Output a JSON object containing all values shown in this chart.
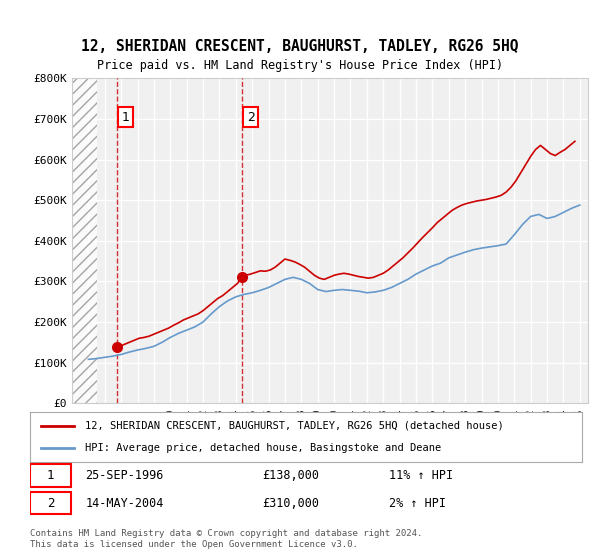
{
  "title": "12, SHERIDAN CRESCENT, BAUGHURST, TADLEY, RG26 5HQ",
  "subtitle": "Price paid vs. HM Land Registry's House Price Index (HPI)",
  "ylabel": "",
  "ylim": [
    0,
    800000
  ],
  "yticks": [
    0,
    100000,
    200000,
    300000,
    400000,
    500000,
    600000,
    700000,
    800000
  ],
  "ytick_labels": [
    "£0",
    "£100K",
    "£200K",
    "£300K",
    "£400K",
    "£500K",
    "£600K",
    "£700K",
    "£800K"
  ],
  "xlim_start": 1994.0,
  "xlim_end": 2025.5,
  "transactions": [
    {
      "num": 1,
      "date": "25-SEP-1996",
      "x": 1996.73,
      "price": 138000,
      "pct": "11%",
      "direction": "↑"
    },
    {
      "num": 2,
      "date": "14-MAY-2004",
      "x": 2004.37,
      "price": 310000,
      "pct": "2%",
      "direction": "↑"
    }
  ],
  "hatch_end_x": 1995.5,
  "line_color_price": "#cc0000",
  "line_color_hpi": "#6699cc",
  "background_color": "#ffffff",
  "plot_bg_color": "#f0f0f0",
  "grid_color": "#ffffff",
  "legend_label_price": "12, SHERIDAN CRESCENT, BAUGHURST, TADLEY, RG26 5HQ (detached house)",
  "legend_label_hpi": "HPI: Average price, detached house, Basingstoke and Deane",
  "footer": "Contains HM Land Registry data © Crown copyright and database right 2024.\nThis data is licensed under the Open Government Licence v3.0.",
  "hpi_data": {
    "years": [
      1995,
      1995.5,
      1996,
      1996.5,
      1997,
      1997.5,
      1998,
      1998.5,
      1999,
      1999.5,
      2000,
      2000.5,
      2001,
      2001.5,
      2002,
      2002.5,
      2003,
      2003.5,
      2004,
      2004.5,
      2005,
      2005.5,
      2006,
      2006.5,
      2007,
      2007.5,
      2008,
      2008.5,
      2009,
      2009.5,
      2010,
      2010.5,
      2011,
      2011.5,
      2012,
      2012.5,
      2013,
      2013.5,
      2014,
      2014.5,
      2015,
      2015.5,
      2016,
      2016.5,
      2017,
      2017.5,
      2018,
      2018.5,
      2019,
      2019.5,
      2020,
      2020.5,
      2021,
      2021.5,
      2022,
      2022.5,
      2023,
      2023.5,
      2024,
      2024.5,
      2025
    ],
    "values": [
      108000,
      110000,
      113000,
      116000,
      120000,
      126000,
      131000,
      135000,
      140000,
      150000,
      162000,
      172000,
      180000,
      188000,
      200000,
      220000,
      238000,
      252000,
      262000,
      268000,
      272000,
      278000,
      285000,
      295000,
      305000,
      310000,
      305000,
      295000,
      280000,
      275000,
      278000,
      280000,
      278000,
      276000,
      272000,
      274000,
      278000,
      285000,
      295000,
      305000,
      318000,
      328000,
      338000,
      345000,
      358000,
      365000,
      372000,
      378000,
      382000,
      385000,
      388000,
      392000,
      415000,
      440000,
      460000,
      465000,
      455000,
      460000,
      470000,
      480000,
      488000
    ]
  },
  "price_data": {
    "years": [
      1996.73,
      1996.9,
      1997.2,
      1997.5,
      1997.8,
      1998.1,
      1998.4,
      1998.7,
      1999.0,
      1999.3,
      1999.6,
      1999.9,
      2000.2,
      2000.5,
      2000.8,
      2001.1,
      2001.4,
      2001.7,
      2002.0,
      2002.3,
      2002.6,
      2002.9,
      2003.2,
      2003.5,
      2003.8,
      2004.1,
      2004.37,
      2004.6,
      2004.9,
      2005.2,
      2005.5,
      2005.8,
      2006.1,
      2006.4,
      2006.7,
      2007.0,
      2007.3,
      2007.6,
      2007.9,
      2008.2,
      2008.5,
      2008.8,
      2009.1,
      2009.4,
      2009.7,
      2010.0,
      2010.3,
      2010.6,
      2010.9,
      2011.2,
      2011.5,
      2011.8,
      2012.1,
      2012.4,
      2012.7,
      2013.0,
      2013.3,
      2013.6,
      2013.9,
      2014.2,
      2014.5,
      2014.8,
      2015.1,
      2015.4,
      2015.7,
      2016.0,
      2016.3,
      2016.6,
      2016.9,
      2017.2,
      2017.5,
      2017.8,
      2018.1,
      2018.4,
      2018.7,
      2019.0,
      2019.3,
      2019.6,
      2019.9,
      2020.2,
      2020.5,
      2020.8,
      2021.1,
      2021.4,
      2021.7,
      2022.0,
      2022.3,
      2022.6,
      2022.9,
      2023.2,
      2023.5,
      2023.8,
      2024.1,
      2024.4,
      2024.7
    ],
    "values": [
      138000,
      140000,
      145000,
      150000,
      155000,
      160000,
      162000,
      165000,
      170000,
      175000,
      180000,
      185000,
      192000,
      198000,
      205000,
      210000,
      215000,
      220000,
      228000,
      238000,
      248000,
      258000,
      265000,
      275000,
      285000,
      295000,
      310000,
      315000,
      318000,
      322000,
      326000,
      325000,
      328000,
      335000,
      345000,
      355000,
      352000,
      348000,
      342000,
      335000,
      325000,
      315000,
      308000,
      305000,
      310000,
      315000,
      318000,
      320000,
      318000,
      315000,
      312000,
      310000,
      308000,
      310000,
      315000,
      320000,
      328000,
      338000,
      348000,
      358000,
      370000,
      382000,
      395000,
      408000,
      420000,
      432000,
      445000,
      455000,
      465000,
      475000,
      482000,
      488000,
      492000,
      495000,
      498000,
      500000,
      502000,
      505000,
      508000,
      512000,
      520000,
      532000,
      548000,
      568000,
      588000,
      608000,
      625000,
      635000,
      625000,
      615000,
      610000,
      618000,
      625000,
      635000,
      645000
    ]
  }
}
